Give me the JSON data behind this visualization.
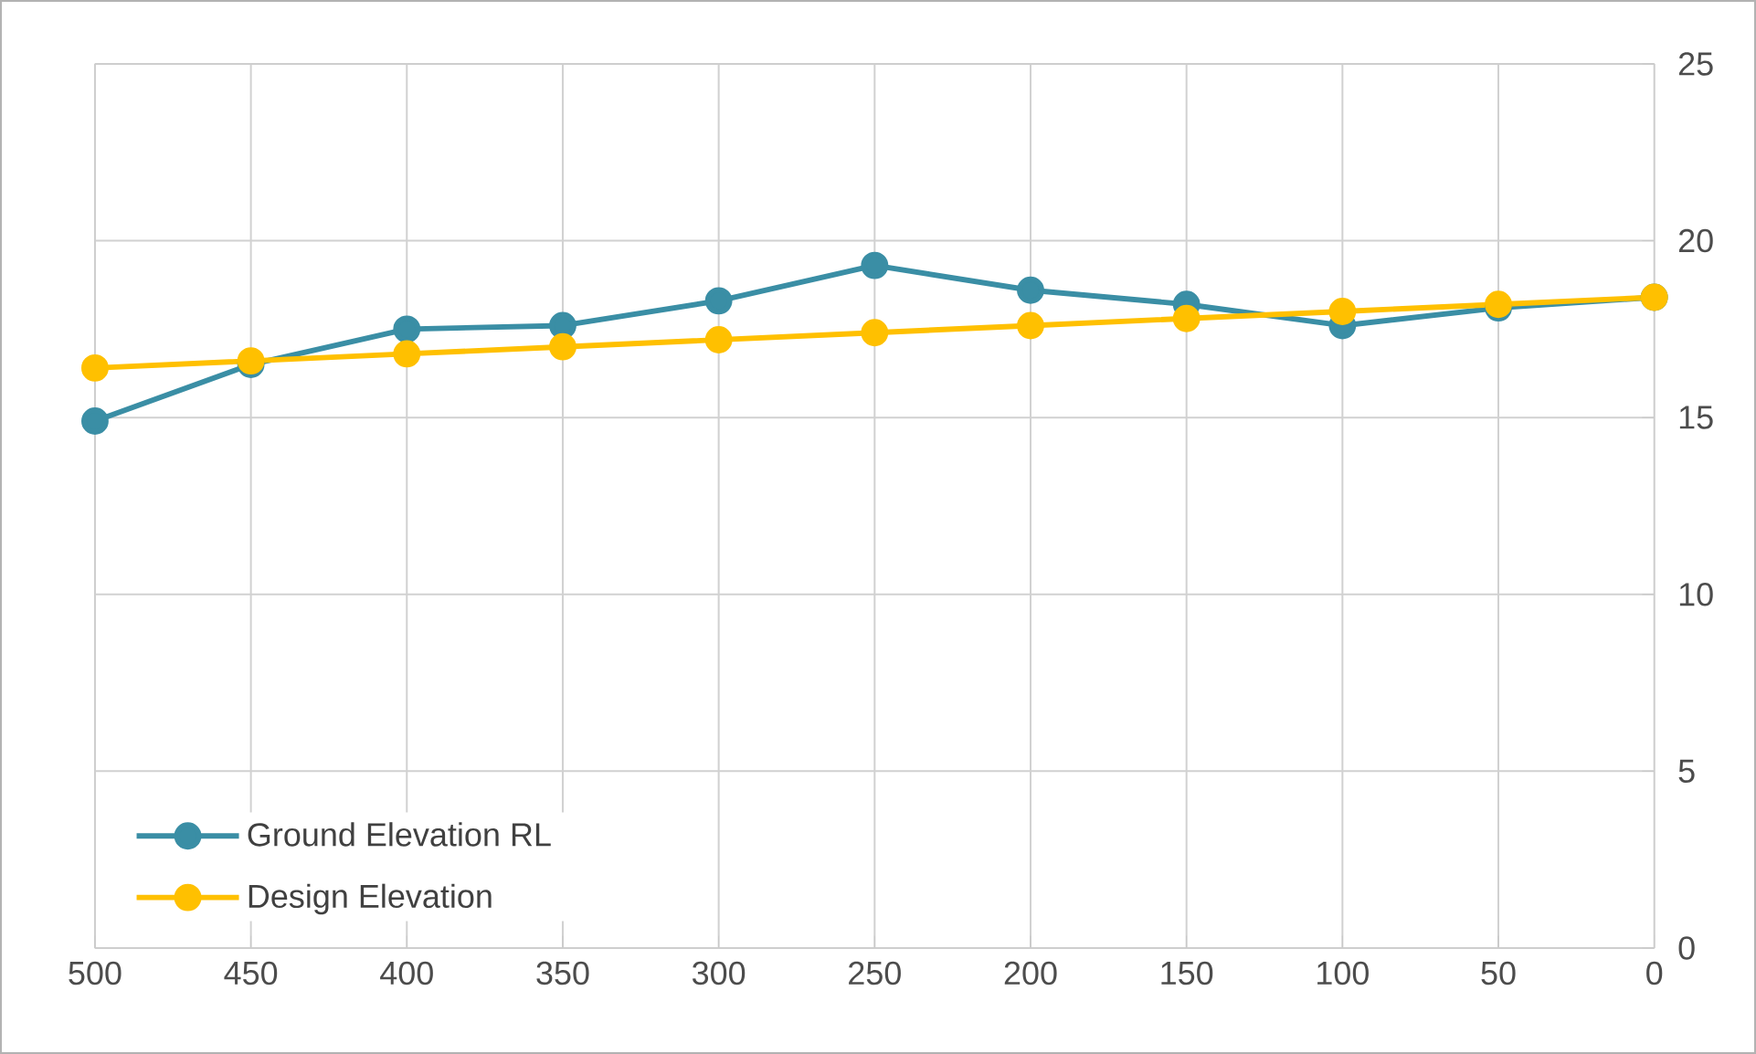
{
  "chart_data": {
    "type": "line",
    "x": [
      500,
      450,
      400,
      350,
      300,
      250,
      200,
      150,
      100,
      50,
      0
    ],
    "series": [
      {
        "name": "Ground Elevation RL",
        "color": "#3a8ea5",
        "values": [
          14.9,
          16.5,
          17.5,
          17.6,
          18.3,
          19.3,
          18.6,
          18.2,
          17.6,
          18.1,
          18.4
        ]
      },
      {
        "name": "Design Elevation",
        "color": "#ffc000",
        "values": [
          16.4,
          16.6,
          16.8,
          17.0,
          17.2,
          17.4,
          17.6,
          17.8,
          18.0,
          18.2,
          18.4
        ]
      }
    ],
    "xlim": [
      500,
      0
    ],
    "xticks": [
      500,
      450,
      400,
      350,
      300,
      250,
      200,
      150,
      100,
      50,
      0
    ],
    "ylim": [
      0,
      25
    ],
    "yticks": [
      0,
      5,
      10,
      15,
      20,
      25
    ],
    "grid": true,
    "legend": "bottom left",
    "marker": "circle",
    "line_style": "solid"
  }
}
